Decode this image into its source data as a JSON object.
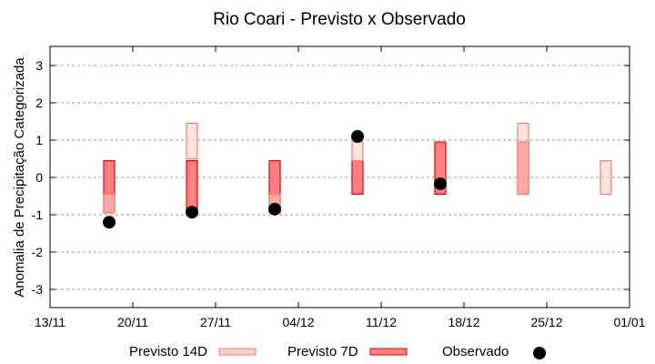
{
  "chart_data": {
    "type": "bar",
    "title": "Rio Coari - Previsto x Observado",
    "ylabel": "Anomalia de Precipitação Categorizada",
    "xlabel": "",
    "ylim": [
      -3.5,
      3.5
    ],
    "yticks": [
      -3,
      -2,
      -1,
      0,
      1,
      2,
      3
    ],
    "xticks": [
      "13/11",
      "20/11",
      "27/11",
      "04/12",
      "11/12",
      "18/12",
      "25/12",
      "01/01"
    ],
    "grid": true,
    "legend_position": "bottom",
    "dates_day_offset_from_13_11": [
      5,
      12,
      19,
      26,
      33,
      40,
      47
    ],
    "dates": [
      "18/11",
      "25/11",
      "02/12",
      "09/12",
      "16/12",
      "23/12",
      "30/12"
    ],
    "series": [
      {
        "name": "Previsto 14D",
        "ranges": [
          [
            -0.95,
            -0.45
          ],
          [
            0.5,
            1.45
          ],
          [
            -0.95,
            -0.45
          ],
          [
            0.45,
            0.95
          ],
          null,
          [
            -0.45,
            1.45
          ],
          [
            -0.45,
            0.45
          ]
        ]
      },
      {
        "name": "Previsto 7D",
        "ranges": [
          [
            -0.95,
            0.45
          ],
          [
            -0.95,
            0.45
          ],
          [
            -0.95,
            0.45
          ],
          [
            -0.45,
            0.45
          ],
          [
            -0.45,
            0.95
          ],
          [
            -0.45,
            0.95
          ],
          null
        ]
      },
      {
        "name": "Observado",
        "values": [
          -1.2,
          -0.93,
          -0.85,
          1.1,
          -0.17,
          null,
          null
        ]
      }
    ],
    "colors": {
      "p14_fill": "#fbcdc5",
      "p14_stroke": "#f08070",
      "p7_fill": "#ff8080",
      "p7_stroke": "#ee0000",
      "obs": "#000000"
    }
  }
}
